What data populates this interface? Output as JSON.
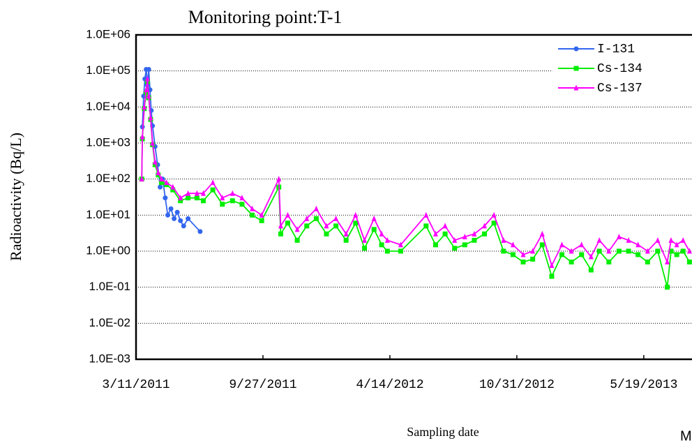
{
  "chart_data": {
    "type": "line",
    "title": "Monitoring point:T-1",
    "y_label": "Radioactivity (Bq/L)",
    "x_label": "Sampling date",
    "footnote": "M",
    "log_y": true,
    "grid": true,
    "legend": "top-right",
    "xlim": [
      "2011-03-11",
      "2013-08-03"
    ],
    "xticks": [
      {
        "value": "2011-03-11",
        "label": "3/11/2011"
      },
      {
        "value": "2011-09-27",
        "label": "9/27/2011"
      },
      {
        "value": "2012-04-14",
        "label": "4/14/2012"
      },
      {
        "value": "2012-10-31",
        "label": "10/31/2012"
      },
      {
        "value": "2013-05-19",
        "label": "5/19/2013"
      }
    ],
    "ylim": [
      0.001,
      1000000
    ],
    "yticks": [
      {
        "value": 1000000,
        "label": "1.0E+06"
      },
      {
        "value": 100000,
        "label": "1.0E+05"
      },
      {
        "value": 10000,
        "label": "1.0E+04"
      },
      {
        "value": 1000,
        "label": "1.0E+03"
      },
      {
        "value": 100,
        "label": "1.0E+02"
      },
      {
        "value": 10,
        "label": "1.0E+01"
      },
      {
        "value": 1,
        "label": "1.0E+00"
      },
      {
        "value": 0.1,
        "label": "1.0E-01"
      },
      {
        "value": 0.01,
        "label": "1.0E-02"
      },
      {
        "value": 0.001,
        "label": "1.0E-03"
      }
    ],
    "series": [
      {
        "name": "I-131",
        "color": "#3366ee",
        "marker": "circle",
        "x": [
          "2011-03-21",
          "2011-03-23",
          "2011-03-25",
          "2011-03-27",
          "2011-03-29",
          "2011-03-31",
          "2011-04-02",
          "2011-04-04",
          "2011-04-06",
          "2011-04-10",
          "2011-04-14",
          "2011-04-18",
          "2011-04-22",
          "2011-04-26",
          "2011-04-30",
          "2011-05-05",
          "2011-05-10",
          "2011-05-15",
          "2011-05-20",
          "2011-05-25",
          "2011-06-01",
          "2011-06-20"
        ],
        "values": [
          2800,
          20000,
          60000,
          110000,
          40000,
          110000,
          30000,
          8000,
          3000,
          800,
          250,
          60,
          100,
          30,
          10,
          15,
          8,
          12,
          7,
          5,
          8,
          3.5
        ]
      },
      {
        "name": "Cs-134",
        "color": "#00ee00",
        "marker": "square",
        "x": [
          "2011-03-20",
          "2011-03-21",
          "2011-03-24",
          "2011-03-27",
          "2011-03-29",
          "2011-03-31",
          "2011-04-03",
          "2011-04-06",
          "2011-04-10",
          "2011-04-15",
          "2011-04-20",
          "2011-04-28",
          "2011-05-08",
          "2011-05-20",
          "2011-06-01",
          "2011-06-15",
          "2011-06-25",
          "2011-07-10",
          "2011-07-25",
          "2011-08-10",
          "2011-08-25",
          "2011-09-10",
          "2011-09-25",
          "2011-10-22",
          "2011-10-25",
          "2011-11-05",
          "2011-11-20",
          "2011-12-05",
          "2011-12-20",
          "2012-01-05",
          "2012-01-20",
          "2012-02-05",
          "2012-02-20",
          "2012-03-05",
          "2012-03-20",
          "2012-04-01",
          "2012-04-10",
          "2012-05-01",
          "2012-06-10",
          "2012-06-25",
          "2012-07-10",
          "2012-07-25",
          "2012-08-10",
          "2012-08-25",
          "2012-09-10",
          "2012-09-25",
          "2012-10-10",
          "2012-10-25",
          "2012-11-10",
          "2012-11-25",
          "2012-12-10",
          "2012-12-25",
          "2013-01-10",
          "2013-01-25",
          "2013-02-10",
          "2013-02-25",
          "2013-03-10",
          "2013-03-25",
          "2013-04-10",
          "2013-04-25",
          "2013-05-10",
          "2013-05-25",
          "2013-06-10",
          "2013-06-25",
          "2013-07-01",
          "2013-07-10",
          "2013-07-20",
          "2013-07-30"
        ],
        "values": [
          100,
          1300,
          9000,
          25000,
          50000,
          18000,
          4500,
          900,
          250,
          130,
          80,
          70,
          50,
          25,
          30,
          30,
          25,
          50,
          20,
          25,
          20,
          10,
          7,
          60,
          3,
          6,
          2,
          5,
          8,
          3,
          5,
          2,
          6,
          1.2,
          4,
          1.5,
          1,
          1,
          5,
          1.5,
          3,
          1.2,
          1.5,
          2,
          3,
          6,
          1,
          0.8,
          0.5,
          0.6,
          1.5,
          0.2,
          0.8,
          0.5,
          0.8,
          0.3,
          1,
          0.5,
          1,
          1,
          0.8,
          0.5,
          1,
          0.1,
          1,
          0.8,
          1,
          0.5
        ]
      },
      {
        "name": "Cs-137",
        "color": "#ff00ff",
        "marker": "triangle",
        "x": [
          "2011-03-20",
          "2011-03-21",
          "2011-03-24",
          "2011-03-27",
          "2011-03-29",
          "2011-03-31",
          "2011-04-03",
          "2011-04-06",
          "2011-04-10",
          "2011-04-15",
          "2011-04-20",
          "2011-04-28",
          "2011-05-08",
          "2011-05-20",
          "2011-06-01",
          "2011-06-15",
          "2011-06-25",
          "2011-07-10",
          "2011-07-25",
          "2011-08-10",
          "2011-08-25",
          "2011-09-10",
          "2011-09-25",
          "2011-10-22",
          "2011-10-25",
          "2011-11-05",
          "2011-11-20",
          "2011-12-05",
          "2011-12-20",
          "2012-01-05",
          "2012-01-20",
          "2012-02-05",
          "2012-02-20",
          "2012-03-05",
          "2012-03-20",
          "2012-04-01",
          "2012-04-10",
          "2012-05-01",
          "2012-06-10",
          "2012-06-25",
          "2012-07-10",
          "2012-07-25",
          "2012-08-10",
          "2012-08-25",
          "2012-09-10",
          "2012-09-25",
          "2012-10-10",
          "2012-10-25",
          "2012-11-10",
          "2012-11-25",
          "2012-12-10",
          "2012-12-25",
          "2013-01-10",
          "2013-01-25",
          "2013-02-10",
          "2013-02-25",
          "2013-03-10",
          "2013-03-25",
          "2013-04-10",
          "2013-04-25",
          "2013-05-10",
          "2013-05-25",
          "2013-06-10",
          "2013-06-25",
          "2013-07-01",
          "2013-07-10",
          "2013-07-20",
          "2013-07-30"
        ],
        "values": [
          100,
          1500,
          10000,
          30000,
          60000,
          20000,
          5000,
          1000,
          300,
          150,
          100,
          80,
          60,
          30,
          40,
          40,
          40,
          80,
          30,
          40,
          30,
          15,
          10,
          100,
          5,
          10,
          4,
          8,
          15,
          5,
          8,
          3,
          10,
          2,
          8,
          3,
          2,
          1.5,
          10,
          3,
          5,
          2,
          2.5,
          3,
          5,
          10,
          2,
          1.5,
          0.8,
          1,
          3,
          0.4,
          1.5,
          1,
          1.5,
          0.7,
          2,
          1,
          2.5,
          2,
          1.5,
          1,
          2,
          0.5,
          2,
          1.5,
          2,
          1
        ]
      }
    ]
  }
}
